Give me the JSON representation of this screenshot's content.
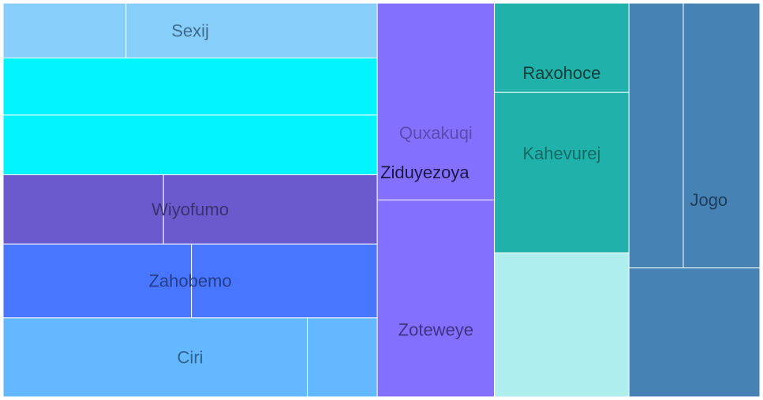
{
  "chart_data": {
    "type": "treemap",
    "groups": [
      {
        "name": "Sexij",
        "color": "#87cefa",
        "label_color": "#3d6b8c",
        "children": [
          {
            "value": 111
          },
          {
            "value": 227
          }
        ]
      },
      {
        "name": "",
        "color": "#00f5ff",
        "label_color": "#333333",
        "children": [
          {
            "value": 352
          },
          {
            "value": 368
          }
        ]
      },
      {
        "name": "Wiyofumo",
        "color": "#6a5acd",
        "label_color": "#3b3170",
        "children": [
          {
            "value": 183
          },
          {
            "value": 244
          }
        ]
      },
      {
        "name": "Zahobemo",
        "color": "#4876ff",
        "label_color": "#243d85",
        "children": [
          {
            "value": 229
          },
          {
            "value": 226
          }
        ]
      },
      {
        "name": "Ciri",
        "color": "#63b8ff",
        "label_color": "#33628a",
        "children": [
          {
            "value": 396
          },
          {
            "value": 91
          }
        ]
      },
      {
        "name": "Ziduyezoya",
        "color": "#8470ff",
        "label_color": "#1a1a40",
        "children": [
          {
            "name": "Quxakuqi",
            "value": 380,
            "label_color": "#5a4caa"
          },
          {
            "name": "Zoteweye",
            "value": 380,
            "label_color": "#3d3380"
          }
        ]
      },
      {
        "name": "Raxohoce",
        "color": "#20b2aa",
        "label_color": "#0d3b38",
        "children": [
          {
            "value": 198
          },
          {
            "name": "Kahevurej",
            "value": 356,
            "label_color": "#146b66"
          }
        ]
      },
      {
        "name": "",
        "color": "#aeeeee",
        "label_color": "#333333",
        "children": [
          {
            "value": 319
          }
        ]
      },
      {
        "name": "Jogo",
        "color": "#4682b4",
        "label_color": "#1e3d5c",
        "children": [
          {
            "value": 237
          },
          {
            "value": 334
          },
          {
            "value": 278
          }
        ]
      }
    ]
  }
}
